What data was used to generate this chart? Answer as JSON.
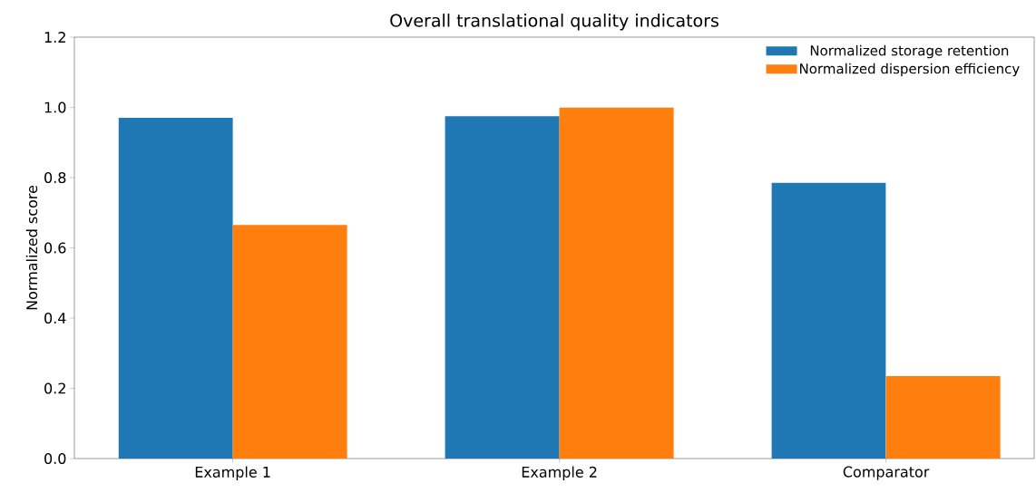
{
  "chart_data": {
    "type": "bar",
    "title": "Overall translational quality indicators",
    "ylabel": "Normalized score",
    "categories": [
      "Example 1",
      "Example 2",
      "Comparator"
    ],
    "series": [
      {
        "name": "Normalized storage retention",
        "color": "#1f77b4",
        "values": [
          0.97,
          0.975,
          0.785
        ]
      },
      {
        "name": "Normalized dispersion efficiency",
        "color": "#ff7f0e",
        "values": [
          0.665,
          1.0,
          0.235
        ]
      }
    ],
    "ylim": [
      0,
      1.2
    ],
    "yticks": [
      {
        "value": 0,
        "label": "0.0"
      },
      {
        "value": 0.2,
        "label": "0.2"
      },
      {
        "value": 0.4,
        "label": "0.4"
      },
      {
        "value": 0.6,
        "label": "0.6"
      },
      {
        "value": 0.8,
        "label": "0.8"
      },
      {
        "value": 1.0,
        "label": "1.0"
      },
      {
        "value": 1.2,
        "label": "1.2"
      }
    ],
    "grid": false,
    "legend": "top right"
  }
}
